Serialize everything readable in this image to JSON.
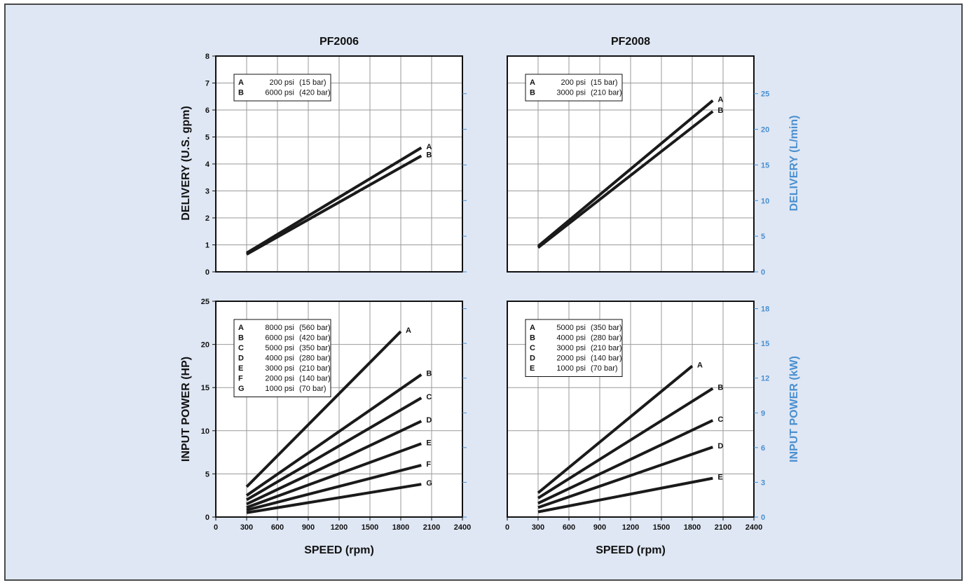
{
  "chart_data": [
    {
      "type": "line",
      "title": "PF2006",
      "xlabel": "",
      "ylabel": "DELIVERY (U.S. gpm)",
      "xlim": [
        0,
        2400
      ],
      "ylim": [
        0,
        8
      ],
      "x_ticks": [
        0,
        300,
        600,
        900,
        1200,
        1500,
        1800,
        2100,
        2400
      ],
      "y_ticks": [
        0,
        1,
        2,
        3,
        4,
        5,
        6,
        7,
        8
      ],
      "grid": true,
      "legend_position": "top-left",
      "legend": [
        {
          "key": "A",
          "pressure": "200 psi",
          "bar": "(15 bar)"
        },
        {
          "key": "B",
          "pressure": "6000 psi",
          "bar": "(420 bar)"
        }
      ],
      "series": [
        {
          "name": "A",
          "x": [
            300,
            2000
          ],
          "y": [
            0.7,
            4.6
          ]
        },
        {
          "name": "B",
          "x": [
            300,
            2000
          ],
          "y": [
            0.65,
            4.3
          ]
        }
      ]
    },
    {
      "type": "line",
      "title": "PF2008",
      "xlabel": "",
      "ylabel": "",
      "y2label": "DELIVERY (L/min)",
      "xlim": [
        0,
        2400
      ],
      "ylim": [
        0,
        8
      ],
      "y2lim": [
        0,
        30.28
      ],
      "x_ticks": [
        0,
        300,
        600,
        900,
        1200,
        1500,
        1800,
        2100,
        2400
      ],
      "y2_ticks": [
        0,
        5,
        10,
        15,
        20,
        25
      ],
      "grid": true,
      "legend_position": "top-left",
      "legend": [
        {
          "key": "A",
          "pressure": "200 psi",
          "bar": "(15 bar)"
        },
        {
          "key": "B",
          "pressure": "3000 psi",
          "bar": "(210 bar)"
        }
      ],
      "series": [
        {
          "name": "A",
          "x": [
            300,
            2000
          ],
          "y": [
            0.95,
            6.35
          ]
        },
        {
          "name": "B",
          "x": [
            300,
            2000
          ],
          "y": [
            0.9,
            5.95
          ]
        }
      ]
    },
    {
      "type": "line",
      "title": "",
      "xlabel": "SPEED (rpm)",
      "ylabel": "INPUT POWER (HP)",
      "xlim": [
        0,
        2400
      ],
      "ylim": [
        0,
        25
      ],
      "x_ticks": [
        0,
        300,
        600,
        900,
        1200,
        1500,
        1800,
        2100,
        2400
      ],
      "y_ticks": [
        0,
        5,
        10,
        15,
        20,
        25
      ],
      "grid": true,
      "legend_position": "top-left",
      "legend": [
        {
          "key": "A",
          "pressure": "8000 psi",
          "bar": "(560 bar)"
        },
        {
          "key": "B",
          "pressure": "6000 psi",
          "bar": "(420 bar)"
        },
        {
          "key": "C",
          "pressure": "5000 psi",
          "bar": "(350 bar)"
        },
        {
          "key": "D",
          "pressure": "4000 psi",
          "bar": "(280 bar)"
        },
        {
          "key": "E",
          "pressure": "3000 psi",
          "bar": "(210 bar)"
        },
        {
          "key": "F",
          "pressure": "2000 psi",
          "bar": "(140 bar)"
        },
        {
          "key": "G",
          "pressure": "1000 psi",
          "bar": "(70 bar)"
        }
      ],
      "series": [
        {
          "name": "A",
          "x": [
            300,
            1800
          ],
          "y": [
            3.5,
            21.5
          ]
        },
        {
          "name": "B",
          "x": [
            300,
            2000
          ],
          "y": [
            2.5,
            16.5
          ]
        },
        {
          "name": "C",
          "x": [
            300,
            2000
          ],
          "y": [
            2.0,
            13.8
          ]
        },
        {
          "name": "D",
          "x": [
            300,
            2000
          ],
          "y": [
            1.5,
            11.1
          ]
        },
        {
          "name": "E",
          "x": [
            300,
            2000
          ],
          "y": [
            1.1,
            8.5
          ]
        },
        {
          "name": "F",
          "x": [
            300,
            2000
          ],
          "y": [
            0.8,
            6.0
          ]
        },
        {
          "name": "G",
          "x": [
            300,
            2000
          ],
          "y": [
            0.5,
            3.8
          ]
        }
      ]
    },
    {
      "type": "line",
      "title": "",
      "xlabel": "SPEED (rpm)",
      "ylabel": "",
      "y2label": "INPUT POWER (kW)",
      "xlim": [
        0,
        2400
      ],
      "ylim": [
        0,
        25
      ],
      "y2lim": [
        0,
        18.64
      ],
      "x_ticks": [
        0,
        300,
        600,
        900,
        1200,
        1500,
        1800,
        2100,
        2400
      ],
      "y2_ticks": [
        0,
        3,
        6,
        9,
        12,
        15,
        18
      ],
      "grid": true,
      "legend_position": "top-left",
      "legend": [
        {
          "key": "A",
          "pressure": "5000 psi",
          "bar": "(350 bar)"
        },
        {
          "key": "B",
          "pressure": "4000 psi",
          "bar": "(280 bar)"
        },
        {
          "key": "C",
          "pressure": "3000 psi",
          "bar": "(210 bar)"
        },
        {
          "key": "D",
          "pressure": "2000 psi",
          "bar": "(140 bar)"
        },
        {
          "key": "E",
          "pressure": "1000 psi",
          "bar": "(70 bar)"
        }
      ],
      "series": [
        {
          "name": "A",
          "x": [
            300,
            1800
          ],
          "y": [
            2.8,
            17.5
          ]
        },
        {
          "name": "B",
          "x": [
            300,
            2000
          ],
          "y": [
            2.2,
            14.9
          ]
        },
        {
          "name": "C",
          "x": [
            300,
            2000
          ],
          "y": [
            1.6,
            11.2
          ]
        },
        {
          "name": "D",
          "x": [
            300,
            2000
          ],
          "y": [
            1.1,
            8.1
          ]
        },
        {
          "name": "E",
          "x": [
            300,
            2000
          ],
          "y": [
            0.6,
            4.5
          ]
        }
      ]
    }
  ],
  "colors": {
    "background": "#dfe7f4",
    "plot": "#ffffff",
    "line": "#1a1a1a",
    "grid": "#9a9a9a",
    "metric_axis": "#4a8fcf"
  }
}
